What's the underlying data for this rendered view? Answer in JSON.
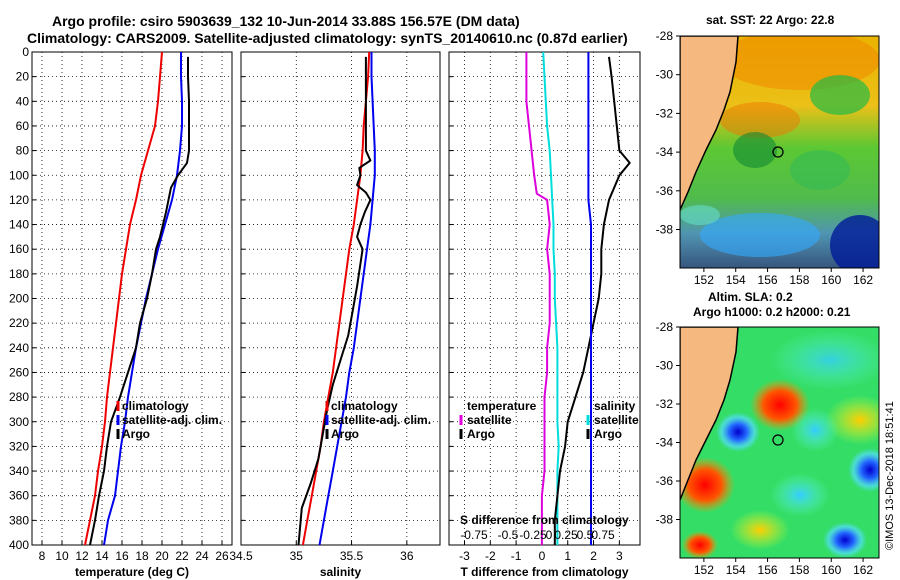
{
  "header": {
    "line1": "Argo profile: csiro 5903639_132 10-Jun-2014 33.88S 156.57E (DM data)",
    "line2": "Climatology: CARS2009. Satellite-adjusted climatology: synTS_20140610.nc (0.87d earlier)"
  },
  "colors": {
    "climatology": "#ee0000",
    "satellite_adj": "#0000ee",
    "argo": "#000000",
    "t_satellite": "#dd00dd",
    "s_satellite": "#00dddd"
  },
  "chart_data": [
    {
      "type": "line",
      "name": "temperature-panel",
      "xlabel": "temperature (deg C)",
      "ylabel": "",
      "xlim": [
        7,
        27
      ],
      "ylim": [
        400,
        0
      ],
      "xticks": [
        "8",
        "10",
        "12",
        "14",
        "16",
        "18",
        "20",
        "22",
        "24",
        "26"
      ],
      "yticks": [
        "0",
        "20",
        "40",
        "60",
        "80",
        "100",
        "120",
        "140",
        "160",
        "180",
        "200",
        "220",
        "240",
        "260",
        "280",
        "300",
        "320",
        "340",
        "360",
        "380",
        "400"
      ],
      "legend": [
        "climatology",
        "satellite-adj. clim.",
        "Argo"
      ],
      "series": [
        {
          "name": "climatology",
          "points": [
            [
              20.0,
              0
            ],
            [
              19.8,
              20
            ],
            [
              19.6,
              40
            ],
            [
              19.3,
              60
            ],
            [
              18.6,
              80
            ],
            [
              17.9,
              100
            ],
            [
              17.4,
              120
            ],
            [
              16.8,
              140
            ],
            [
              16.4,
              160
            ],
            [
              16.0,
              180
            ],
            [
              15.7,
              200
            ],
            [
              15.4,
              220
            ],
            [
              15.1,
              240
            ],
            [
              14.8,
              260
            ],
            [
              14.5,
              280
            ],
            [
              14.3,
              300
            ],
            [
              14.0,
              320
            ],
            [
              13.6,
              340
            ],
            [
              13.3,
              360
            ],
            [
              12.8,
              380
            ],
            [
              12.3,
              400
            ]
          ]
        },
        {
          "name": "satellite-adj. clim.",
          "points": [
            [
              21.9,
              0
            ],
            [
              21.9,
              20
            ],
            [
              22.0,
              40
            ],
            [
              22.0,
              60
            ],
            [
              21.8,
              80
            ],
            [
              21.5,
              100
            ],
            [
              21.0,
              120
            ],
            [
              20.3,
              140
            ],
            [
              19.6,
              160
            ],
            [
              19.0,
              180
            ],
            [
              18.4,
              200
            ],
            [
              17.9,
              220
            ],
            [
              17.4,
              240
            ],
            [
              17.0,
              260
            ],
            [
              16.6,
              280
            ],
            [
              16.3,
              300
            ],
            [
              15.9,
              320
            ],
            [
              15.6,
              340
            ],
            [
              15.3,
              360
            ],
            [
              14.6,
              380
            ],
            [
              14.2,
              400
            ]
          ]
        },
        {
          "name": "Argo",
          "points": [
            [
              22.6,
              4
            ],
            [
              22.6,
              20
            ],
            [
              22.7,
              40
            ],
            [
              22.7,
              60
            ],
            [
              22.7,
              80
            ],
            [
              22.5,
              90
            ],
            [
              21.6,
              100
            ],
            [
              20.9,
              110
            ],
            [
              20.4,
              130
            ],
            [
              19.8,
              150
            ],
            [
              19.4,
              160
            ],
            [
              19.0,
              180
            ],
            [
              18.5,
              200
            ],
            [
              17.8,
              220
            ],
            [
              17.4,
              240
            ],
            [
              16.6,
              260
            ],
            [
              15.8,
              280
            ],
            [
              14.9,
              300
            ],
            [
              14.5,
              320
            ],
            [
              14.2,
              340
            ],
            [
              13.7,
              360
            ],
            [
              13.3,
              380
            ],
            [
              12.8,
              400
            ]
          ]
        }
      ]
    },
    {
      "type": "line",
      "name": "salinity-panel",
      "xlabel": "salinity",
      "xlim": [
        34.5,
        36.3
      ],
      "ylim": [
        400,
        0
      ],
      "xticks": [
        "34.5",
        "35",
        "35.5",
        "36"
      ],
      "legend": [
        "climatology",
        "satellite-adj. clim.",
        "Argo"
      ],
      "series": [
        {
          "name": "climatology",
          "points": [
            [
              35.66,
              0
            ],
            [
              35.65,
              20
            ],
            [
              35.63,
              40
            ],
            [
              35.61,
              60
            ],
            [
              35.6,
              80
            ],
            [
              35.58,
              100
            ],
            [
              35.55,
              120
            ],
            [
              35.52,
              140
            ],
            [
              35.48,
              160
            ],
            [
              35.45,
              180
            ],
            [
              35.42,
              200
            ],
            [
              35.39,
              220
            ],
            [
              35.36,
              240
            ],
            [
              35.33,
              260
            ],
            [
              35.29,
              280
            ],
            [
              35.25,
              300
            ],
            [
              35.22,
              320
            ],
            [
              35.18,
              340
            ],
            [
              35.14,
              360
            ],
            [
              35.1,
              380
            ],
            [
              35.06,
              400
            ]
          ]
        },
        {
          "name": "satellite-adj. clim.",
          "points": [
            [
              35.68,
              0
            ],
            [
              35.68,
              20
            ],
            [
              35.69,
              40
            ],
            [
              35.7,
              60
            ],
            [
              35.71,
              80
            ],
            [
              35.71,
              100
            ],
            [
              35.69,
              120
            ],
            [
              35.67,
              140
            ],
            [
              35.64,
              160
            ],
            [
              35.61,
              180
            ],
            [
              35.58,
              200
            ],
            [
              35.55,
              220
            ],
            [
              35.52,
              240
            ],
            [
              35.48,
              260
            ],
            [
              35.45,
              280
            ],
            [
              35.41,
              300
            ],
            [
              35.37,
              320
            ],
            [
              35.33,
              340
            ],
            [
              35.29,
              360
            ],
            [
              35.25,
              380
            ],
            [
              35.21,
              400
            ]
          ]
        },
        {
          "name": "Argo",
          "points": [
            [
              35.63,
              4
            ],
            [
              35.63,
              40
            ],
            [
              35.63,
              60
            ],
            [
              35.63,
              80
            ],
            [
              35.67,
              88
            ],
            [
              35.57,
              94
            ],
            [
              35.58,
              100
            ],
            [
              35.55,
              108
            ],
            [
              35.63,
              114
            ],
            [
              35.67,
              120
            ],
            [
              35.62,
              130
            ],
            [
              35.58,
              140
            ],
            [
              35.55,
              150
            ],
            [
              35.6,
              160
            ],
            [
              35.55,
              190
            ],
            [
              35.51,
              210
            ],
            [
              35.47,
              230
            ],
            [
              35.4,
              250
            ],
            [
              35.33,
              270
            ],
            [
              35.28,
              290
            ],
            [
              35.2,
              330
            ],
            [
              35.13,
              350
            ],
            [
              35.05,
              370
            ],
            [
              35.03,
              390
            ],
            [
              35.02,
              400
            ]
          ]
        }
      ]
    },
    {
      "type": "line",
      "name": "difference-panel",
      "xlabel": "T difference from climatology",
      "xlabel_top": "S difference from climatology",
      "xlim": [
        -3.6,
        3.8
      ],
      "ylim": [
        400,
        0
      ],
      "xticks": [
        "-3",
        "-2",
        "-1",
        "0",
        "1",
        "2",
        "3"
      ],
      "xticks_top": [
        "-0.75",
        "-0.5",
        "-0.25",
        "0",
        "0.25",
        "0.5",
        "0.75"
      ],
      "legend_left_title": "temperature",
      "legend_left": [
        "satellite",
        "Argo"
      ],
      "legend_right_title": "salinity",
      "legend_right": [
        "satellite",
        "Argo"
      ],
      "series": [
        {
          "name": "T satellite",
          "points": [
            [
              -0.6,
              0
            ],
            [
              -0.6,
              20
            ],
            [
              -0.6,
              40
            ],
            [
              -0.5,
              60
            ],
            [
              -0.4,
              80
            ],
            [
              -0.3,
              100
            ],
            [
              -0.2,
              115
            ],
            [
              0.2,
              120
            ],
            [
              0.3,
              140
            ],
            [
              0.2,
              160
            ],
            [
              0.3,
              180
            ],
            [
              0.3,
              200
            ],
            [
              0.3,
              220
            ],
            [
              0.2,
              240
            ],
            [
              0.2,
              260
            ],
            [
              0.1,
              280
            ],
            [
              0.1,
              300
            ],
            [
              0.1,
              320
            ],
            [
              0.1,
              340
            ],
            [
              0.0,
              360
            ],
            [
              0.0,
              380
            ],
            [
              0.0,
              400
            ]
          ]
        },
        {
          "name": "S satellite",
          "points": [
            [
              0.05,
              0
            ],
            [
              0.1,
              20
            ],
            [
              0.15,
              40
            ],
            [
              0.2,
              60
            ],
            [
              0.3,
              80
            ],
            [
              0.35,
              100
            ],
            [
              0.4,
              120
            ],
            [
              0.45,
              140
            ],
            [
              0.45,
              160
            ],
            [
              0.5,
              180
            ],
            [
              0.5,
              200
            ],
            [
              0.55,
              220
            ],
            [
              0.6,
              240
            ],
            [
              0.6,
              260
            ],
            [
              0.6,
              280
            ],
            [
              0.6,
              300
            ],
            [
              0.65,
              320
            ],
            [
              0.6,
              340
            ],
            [
              0.6,
              360
            ],
            [
              0.6,
              380
            ],
            [
              0.6,
              400
            ]
          ]
        },
        {
          "name": "T Argo",
          "points": [
            [
              2.6,
              4
            ],
            [
              2.7,
              20
            ],
            [
              2.8,
              40
            ],
            [
              2.9,
              60
            ],
            [
              3.0,
              80
            ],
            [
              3.4,
              90
            ],
            [
              3.0,
              100
            ],
            [
              2.8,
              110
            ],
            [
              2.6,
              120
            ],
            [
              2.4,
              140
            ],
            [
              2.3,
              160
            ],
            [
              2.3,
              180
            ],
            [
              2.2,
              200
            ],
            [
              2.0,
              220
            ],
            [
              1.8,
              240
            ],
            [
              1.6,
              260
            ],
            [
              1.3,
              280
            ],
            [
              1.0,
              300
            ],
            [
              0.9,
              320
            ],
            [
              0.7,
              340
            ],
            [
              0.6,
              360
            ],
            [
              0.5,
              380
            ],
            [
              0.5,
              400
            ]
          ]
        },
        {
          "name": "S Argo",
          "points": [
            [
              1.8,
              0
            ],
            [
              1.8,
              20
            ],
            [
              1.8,
              40
            ],
            [
              1.8,
              60
            ],
            [
              1.8,
              80
            ],
            [
              1.8,
              100
            ],
            [
              1.8,
              120
            ],
            [
              1.9,
              140
            ],
            [
              1.9,
              160
            ],
            [
              1.9,
              180
            ],
            [
              1.9,
              200
            ],
            [
              1.9,
              220
            ],
            [
              1.9,
              240
            ],
            [
              1.9,
              260
            ],
            [
              1.9,
              280
            ],
            [
              1.9,
              300
            ],
            [
              1.9,
              320
            ],
            [
              1.9,
              340
            ],
            [
              1.9,
              360
            ],
            [
              1.9,
              380
            ],
            [
              1.9,
              400
            ]
          ]
        }
      ]
    }
  ],
  "maps": {
    "sst": {
      "title": "sat. SST: 22 Argo: 22.8",
      "yticks": [
        "-28",
        "-30",
        "-32",
        "-34",
        "-36",
        "-38"
      ],
      "xticks": [
        "152",
        "154",
        "156",
        "158",
        "160",
        "162"
      ],
      "float_lon": 156.57,
      "float_lat": -33.88
    },
    "sla": {
      "title1": "Altim. SLA: 0.2",
      "title2": "Argo h1000: 0.2 h2000: 0.21",
      "yticks": [
        "-28",
        "-30",
        "-32",
        "-34",
        "-36",
        "-38"
      ],
      "xticks": [
        "152",
        "154",
        "156",
        "158",
        "160",
        "162"
      ],
      "float_lon": 156.57,
      "float_lat": -33.88
    }
  },
  "stamp": "©IMOS 13-Dec-2018 18:51:41"
}
